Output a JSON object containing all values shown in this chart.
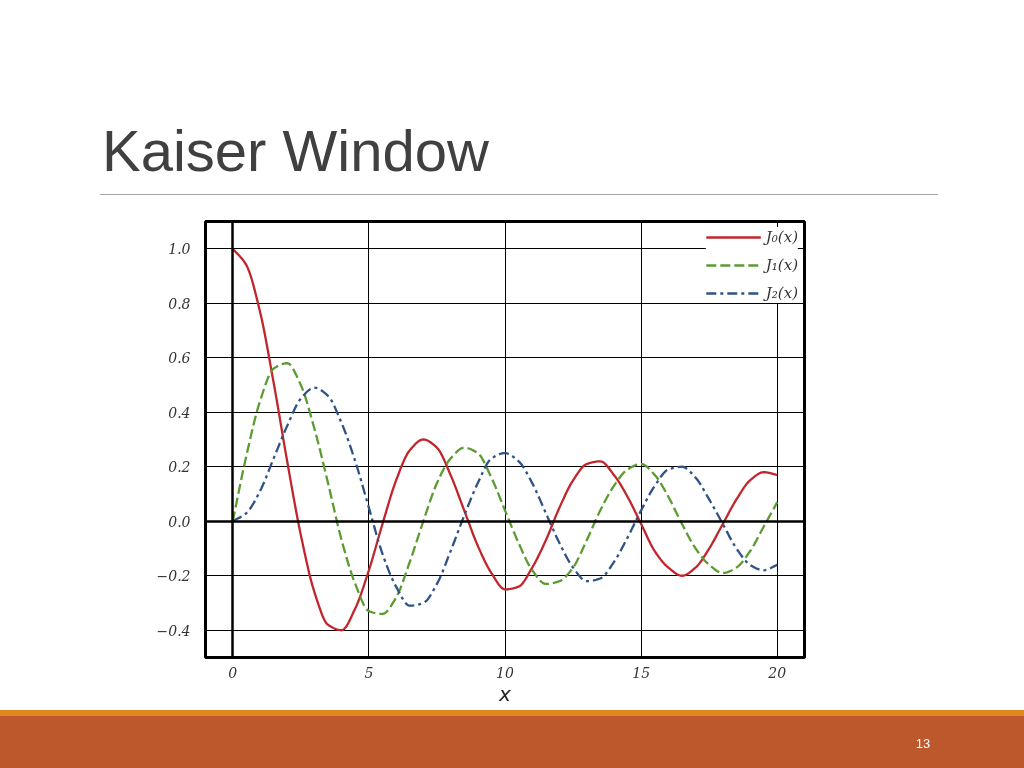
{
  "chart_data": {
    "type": "line",
    "title": "Kaiser Window",
    "xlabel": "x",
    "annotations": [
      "13"
    ],
    "x": [
      0,
      0.5,
      1,
      1.5,
      2,
      2.5,
      3,
      3.5,
      4,
      4.5,
      5,
      5.5,
      6,
      6.5,
      7,
      7.5,
      8,
      8.5,
      9,
      9.5,
      10,
      10.5,
      11,
      11.5,
      12,
      12.5,
      13,
      13.5,
      14,
      14.5,
      15,
      15.5,
      16,
      16.5,
      17,
      17.5,
      18,
      18.5,
      19,
      19.5,
      20
    ],
    "series": [
      {
        "name": "J₀(x)",
        "color": "#c0272d",
        "line_style": "solid",
        "values": [
          1.0,
          0.94,
          0.77,
          0.51,
          0.22,
          -0.05,
          -0.26,
          -0.38,
          -0.4,
          -0.32,
          -0.18,
          -0.01,
          0.15,
          0.26,
          0.3,
          0.27,
          0.17,
          0.04,
          -0.09,
          -0.19,
          -0.25,
          -0.24,
          -0.17,
          -0.07,
          0.05,
          0.15,
          0.21,
          0.22,
          0.17,
          0.09,
          -0.01,
          -0.11,
          -0.17,
          -0.2,
          -0.17,
          -0.1,
          -0.01,
          0.08,
          0.15,
          0.18,
          0.17
        ]
      },
      {
        "name": "J₁(x)",
        "color": "#5b9c32",
        "line_style": "dashed",
        "values": [
          0.0,
          0.24,
          0.44,
          0.56,
          0.58,
          0.5,
          0.34,
          0.14,
          -0.07,
          -0.23,
          -0.33,
          -0.34,
          -0.28,
          -0.15,
          0.0,
          0.14,
          0.23,
          0.27,
          0.25,
          0.16,
          0.04,
          -0.08,
          -0.18,
          -0.23,
          -0.22,
          -0.17,
          -0.07,
          0.04,
          0.13,
          0.19,
          0.21,
          0.17,
          0.09,
          -0.01,
          -0.1,
          -0.16,
          -0.19,
          -0.17,
          -0.11,
          -0.02,
          0.07
        ]
      },
      {
        "name": "J₂(x)",
        "color": "#2f5386",
        "line_style": "dashdot",
        "values": [
          0.0,
          0.03,
          0.11,
          0.23,
          0.35,
          0.45,
          0.49,
          0.46,
          0.36,
          0.22,
          0.05,
          -0.12,
          -0.24,
          -0.31,
          -0.3,
          -0.23,
          -0.11,
          0.02,
          0.14,
          0.23,
          0.25,
          0.22,
          0.14,
          0.03,
          -0.08,
          -0.17,
          -0.22,
          -0.21,
          -0.15,
          -0.06,
          0.04,
          0.13,
          0.19,
          0.2,
          0.16,
          0.08,
          -0.01,
          -0.1,
          -0.16,
          -0.18,
          -0.16
        ]
      }
    ],
    "xlim": [
      -1,
      21
    ],
    "ylim": [
      -0.5,
      1.1
    ],
    "xticks": [
      0,
      5,
      10,
      15,
      20
    ],
    "yticks": [
      {
        "value": -0.4,
        "label": "−0.4"
      },
      {
        "value": -0.2,
        "label": "−0.2"
      },
      {
        "value": 0,
        "label": "0.0"
      },
      0.2,
      0.4,
      0.6,
      0.8,
      {
        "value": 1,
        "label": "1.0"
      }
    ],
    "grid": true,
    "legend": "top right"
  }
}
